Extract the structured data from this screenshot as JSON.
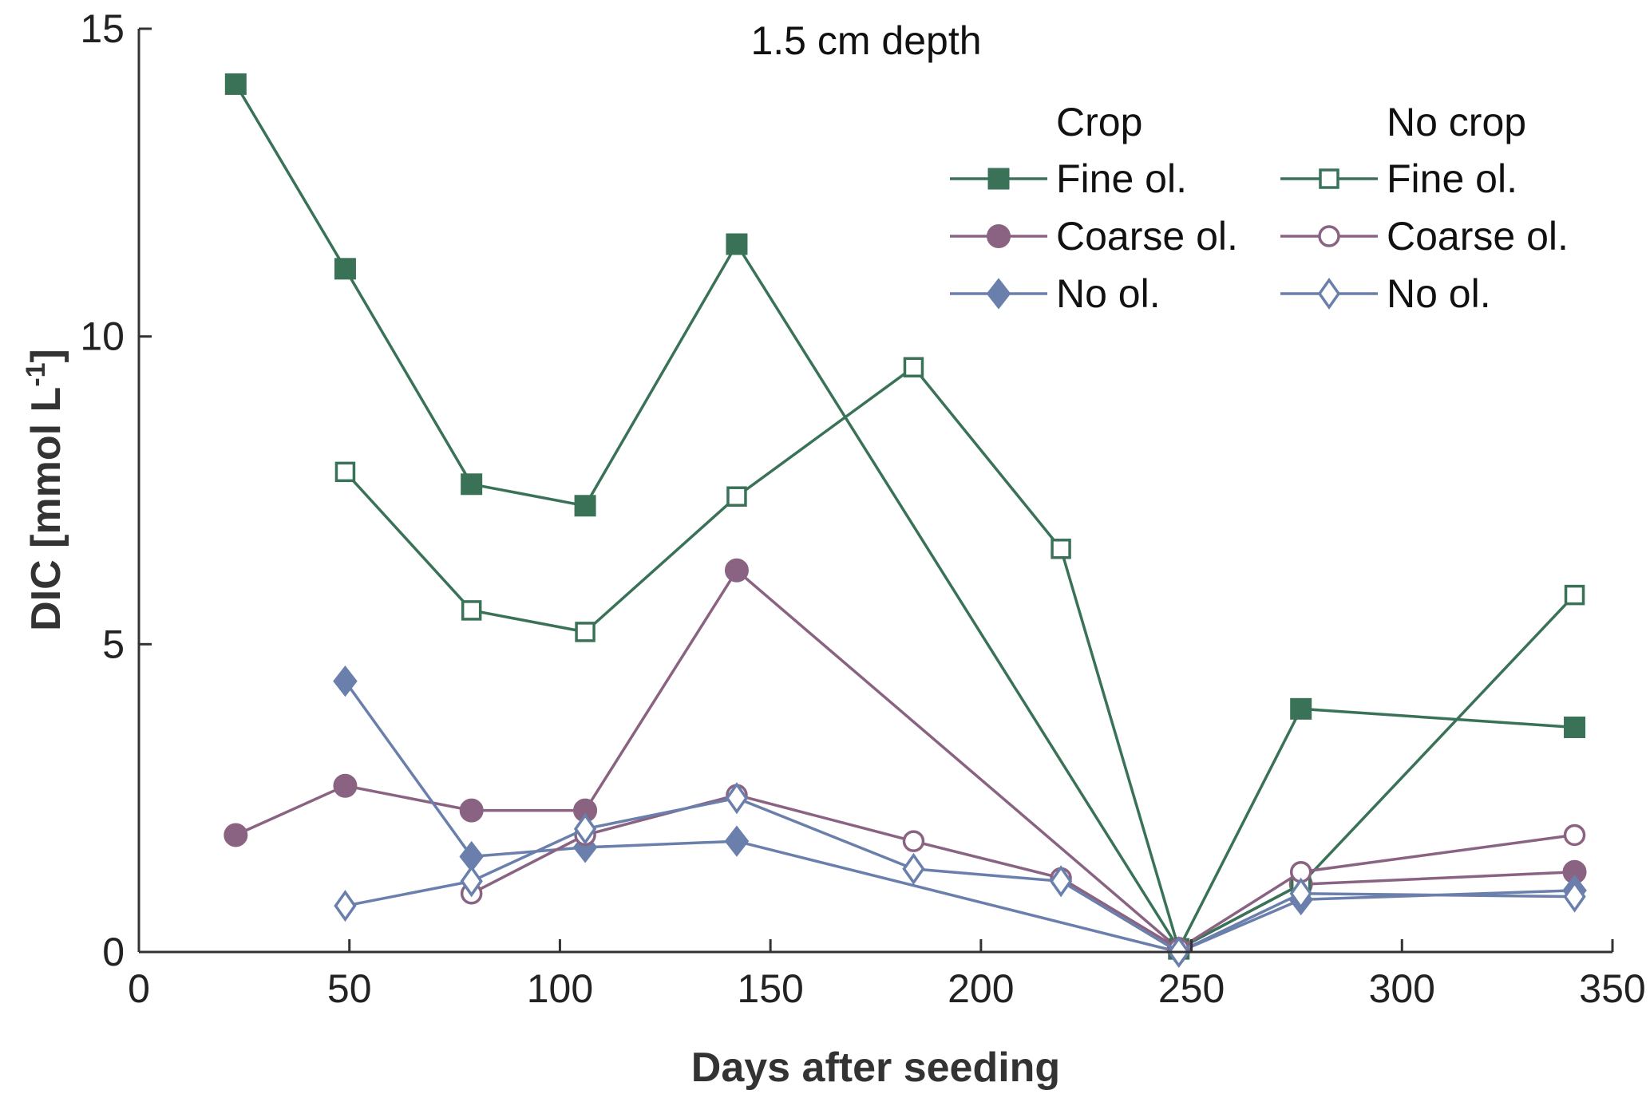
{
  "chart_data": {
    "type": "line",
    "title": "1.5 cm depth",
    "xlabel": "Days after seeding",
    "ylabel_main": "DIC [mmol L",
    "ylabel_sup": "-1",
    "ylabel_close": "]",
    "xlim": [
      0,
      350
    ],
    "ylim": [
      0,
      15
    ],
    "xticks": [
      0,
      50,
      100,
      150,
      200,
      250,
      300,
      350
    ],
    "yticks": [
      0,
      5,
      10,
      15
    ],
    "legend": {
      "placement": "top-right",
      "group_headers": [
        "Crop",
        "No crop"
      ]
    },
    "series": [
      {
        "name": "Fine ol.",
        "group": "Crop",
        "marker": "square",
        "filled": true,
        "color": "#3a7258",
        "x": [
          23,
          49,
          79,
          106,
          142,
          247,
          276,
          341
        ],
        "y": [
          14.1,
          11.1,
          7.6,
          7.25,
          11.5,
          0.05,
          3.95,
          3.65
        ]
      },
      {
        "name": "Coarse ol.",
        "group": "Crop",
        "marker": "circle",
        "filled": true,
        "color": "#8a6383",
        "x": [
          23,
          49,
          79,
          106,
          142,
          247,
          276,
          341
        ],
        "y": [
          1.9,
          2.7,
          2.3,
          2.3,
          6.2,
          0.05,
          1.1,
          1.3
        ]
      },
      {
        "name": "No ol.",
        "group": "Crop",
        "marker": "diamond",
        "filled": true,
        "color": "#6a7fac",
        "x": [
          49,
          79,
          106,
          142,
          247,
          276,
          341
        ],
        "y": [
          4.4,
          1.55,
          1.7,
          1.8,
          0.0,
          0.85,
          1.0
        ]
      },
      {
        "name": "Fine ol.",
        "group": "No crop",
        "marker": "square",
        "filled": false,
        "color": "#3a7258",
        "x": [
          49,
          79,
          106,
          142,
          184,
          219,
          247,
          276,
          341
        ],
        "y": [
          7.8,
          5.55,
          5.2,
          7.4,
          9.5,
          6.55,
          0.05,
          1.1,
          5.8
        ]
      },
      {
        "name": "Coarse ol.",
        "group": "No crop",
        "marker": "circle",
        "filled": false,
        "color": "#8a6383",
        "x": [
          79,
          106,
          142,
          184,
          219,
          247,
          276,
          341
        ],
        "y": [
          0.95,
          1.9,
          2.55,
          1.8,
          1.2,
          0.05,
          1.3,
          1.9
        ]
      },
      {
        "name": "No ol.",
        "group": "No crop",
        "marker": "diamond",
        "filled": false,
        "color": "#6a7fac",
        "x": [
          49,
          79,
          106,
          142,
          184,
          219,
          247,
          276,
          341
        ],
        "y": [
          0.75,
          1.15,
          2.0,
          2.5,
          1.35,
          1.15,
          0.0,
          0.95,
          0.9
        ]
      }
    ]
  }
}
